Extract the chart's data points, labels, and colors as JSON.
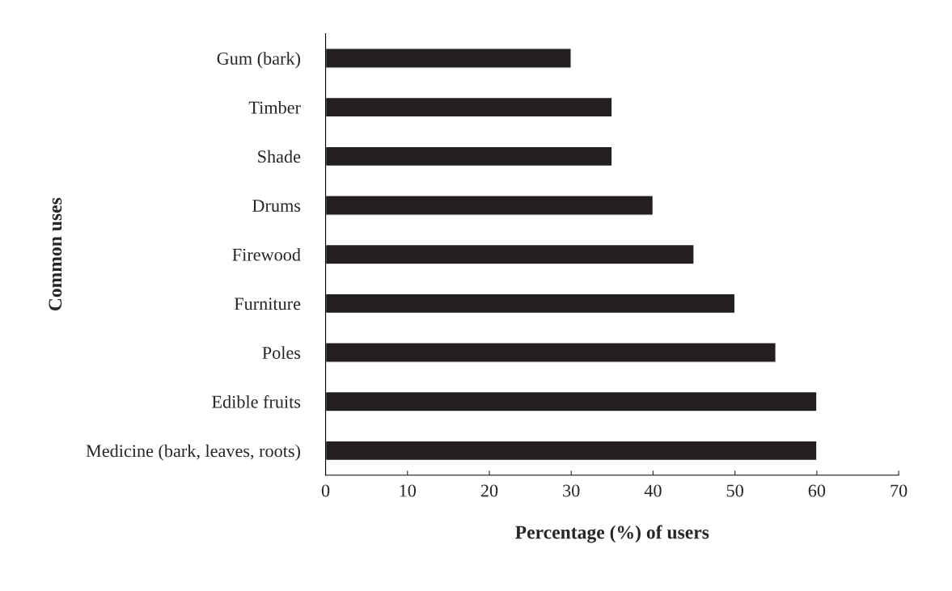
{
  "chart_data": {
    "type": "bar",
    "orientation": "horizontal",
    "xlabel": "Percentage (%) of users",
    "ylabel": "Common uses",
    "categories": [
      "Gum (bark)",
      "Timber",
      "Shade",
      "Drums",
      "Firewood",
      "Furniture",
      "Poles",
      "Edible fruits",
      "Medicine (bark, leaves, roots)"
    ],
    "values": [
      30,
      35,
      35,
      40,
      45,
      50,
      55,
      60,
      60
    ],
    "color": "#231f20",
    "xlim": [
      0,
      70
    ],
    "xticks": [
      0,
      10,
      20,
      30,
      40,
      50,
      60,
      70
    ],
    "grid": false,
    "legend": false
  }
}
